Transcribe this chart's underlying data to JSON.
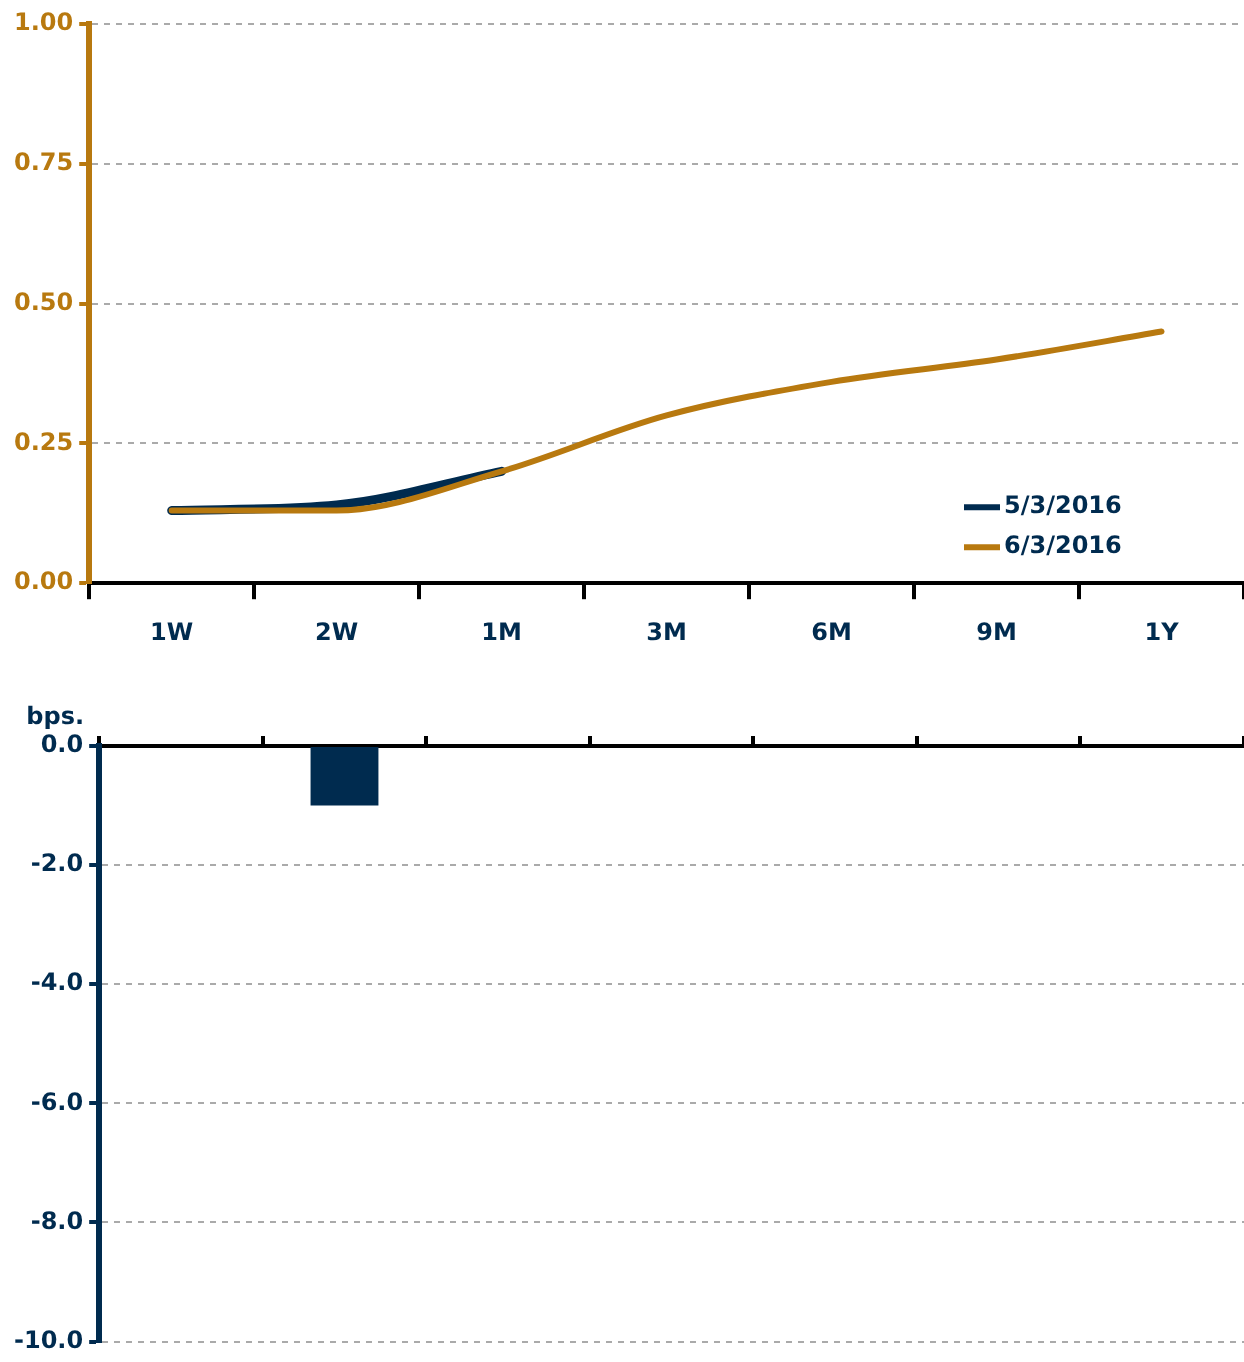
{
  "chart_data": [
    {
      "type": "line",
      "categories": [
        "1W",
        "2W",
        "1M",
        "3M",
        "6M",
        "9M",
        "1Y"
      ],
      "series": [
        {
          "name": "5/3/2016",
          "color": "#002b4f",
          "values": [
            0.13,
            0.14,
            0.2,
            null,
            null,
            null,
            null
          ]
        },
        {
          "name": "6/3/2016",
          "color": "#b8790f",
          "values": [
            0.13,
            0.13,
            0.2,
            0.3,
            0.36,
            0.4,
            0.45
          ]
        }
      ],
      "ylim": [
        0,
        1
      ],
      "yticks": [
        {
          "value": 0,
          "label": "0.00"
        },
        {
          "value": 0.25,
          "label": "0.25"
        },
        {
          "value": 0.5,
          "label": "0.50"
        },
        {
          "value": 0.75,
          "label": "0.75"
        },
        {
          "value": 1,
          "label": "1.00"
        }
      ],
      "grid": "y",
      "legend": "bottom right",
      "marker": "none",
      "line_style": "solid"
    },
    {
      "type": "bar",
      "categories": [
        null,
        null,
        null,
        null,
        null,
        null,
        null
      ],
      "values": [
        0,
        -1,
        0,
        0,
        0,
        0,
        0
      ],
      "color": "#002b4f",
      "ylabel": "bps.",
      "ylim": [
        -10,
        0
      ],
      "yticks": [
        {
          "value": 0,
          "label": "0.0"
        },
        {
          "value": -2,
          "label": "-2.0"
        },
        {
          "value": -4,
          "label": "-4.0"
        },
        {
          "value": -6,
          "label": "-6.0"
        },
        {
          "value": -8,
          "label": "-8.0"
        },
        {
          "value": -10,
          "label": "-10.0"
        }
      ],
      "grid": "y",
      "tick_labels": "y"
    }
  ]
}
